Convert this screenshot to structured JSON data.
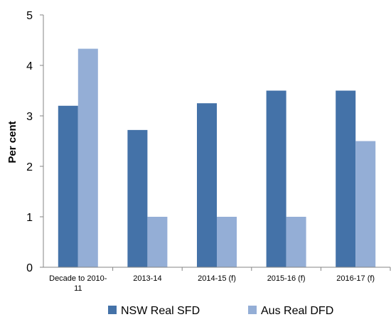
{
  "chart_data": {
    "type": "bar",
    "title": "",
    "xlabel": "",
    "ylabel": "Per cent",
    "ylim": [
      0,
      5
    ],
    "yticks": [
      "0",
      "1",
      "2",
      "3",
      "4",
      "5"
    ],
    "grid": false,
    "legend_position": "bottom",
    "categories": [
      [
        "Decade to 2010-",
        "11"
      ],
      [
        "2013-14"
      ],
      [
        "2014-15 (f)"
      ],
      [
        "2015-16 (f)"
      ],
      [
        "2016-17 (f)"
      ]
    ],
    "series": [
      {
        "name": "NSW Real SFD",
        "color": "#4472a8",
        "values": [
          3.2,
          2.72,
          3.25,
          3.5,
          3.5
        ]
      },
      {
        "name": "Aus Real DFD",
        "color": "#94aed6",
        "values": [
          4.33,
          1.0,
          1.0,
          1.0,
          2.5
        ]
      }
    ]
  }
}
